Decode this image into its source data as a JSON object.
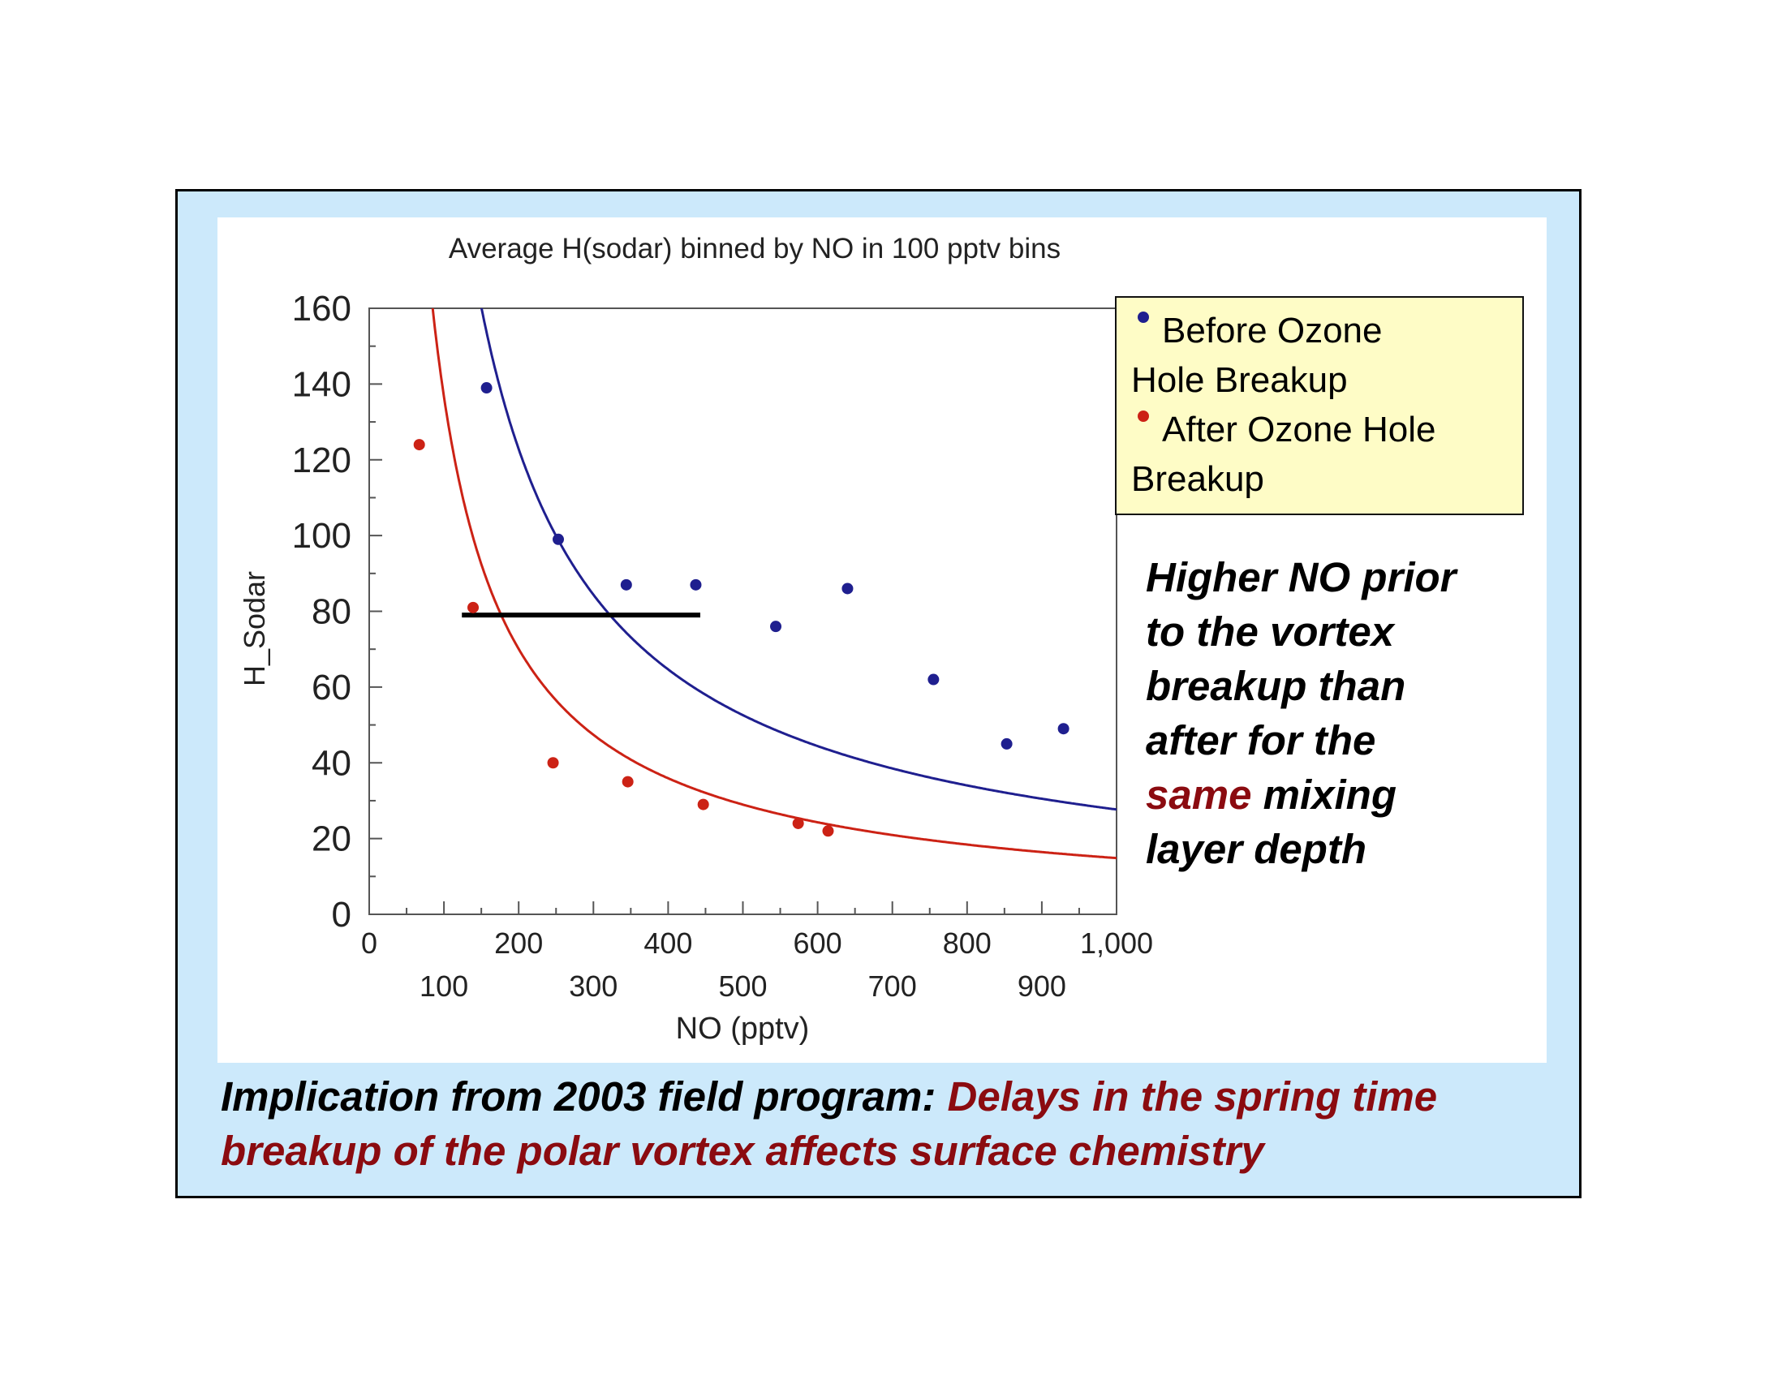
{
  "colors": {
    "frame_fill": "#cce9fb",
    "legend_fill": "#fefcc6",
    "before_series": "#1f1f8f",
    "after_series": "#cc2215",
    "emphasis_text": "#8b0b10"
  },
  "side_note": {
    "line1": "Higher NO prior",
    "line2": "to the vortex",
    "line3": "breakup than",
    "line4": "after for the",
    "emph": "same",
    "line5_rest": " mixing",
    "line6": "layer depth"
  },
  "implication": {
    "lead": "Implication from 2003 field program: ",
    "highlight": "Delays in the spring time breakup of the polar vortex affects surface chemistry"
  },
  "chart_data": {
    "type": "scatter",
    "title": "Average H(sodar) binned by NO in 100 pptv bins",
    "xlabel": "NO (pptv)",
    "ylabel": "H_Sodar",
    "xlim": [
      0,
      1000
    ],
    "ylim": [
      0,
      160
    ],
    "x_ticks": [
      0,
      100,
      200,
      300,
      400,
      500,
      600,
      700,
      800,
      900,
      1000
    ],
    "x_tick_labels": [
      "0",
      "100",
      "200",
      "300",
      "400",
      "500",
      "600",
      "700",
      "800",
      "900",
      "1,000"
    ],
    "y_ticks": [
      0,
      20,
      40,
      60,
      80,
      100,
      120,
      140,
      160
    ],
    "y_tick_labels": [
      "0",
      "20",
      "40",
      "60",
      "80",
      "100",
      "120",
      "140",
      "160"
    ],
    "grid": false,
    "legend_position": "top-right",
    "legend": {
      "before_line1": "Before Ozone",
      "before_line2": "Hole Breakup",
      "after_line1": "After Ozone Hole",
      "after_line2": "Breakup"
    },
    "series": [
      {
        "name": "Before Ozone Hole Breakup",
        "color": "#1f1f8f",
        "points": [
          [
            157,
            139
          ],
          [
            253,
            99
          ],
          [
            344,
            87
          ],
          [
            437,
            87
          ],
          [
            544,
            76
          ],
          [
            640,
            86
          ],
          [
            755,
            62
          ],
          [
            853,
            45
          ],
          [
            929,
            49
          ]
        ],
        "fit": {
          "kind": "power",
          "a": 16600,
          "b": -0.926
        }
      },
      {
        "name": "After Ozone Hole Breakup",
        "color": "#cc2215",
        "points": [
          [
            67,
            124
          ],
          [
            139,
            81
          ],
          [
            246,
            40
          ],
          [
            346,
            35
          ],
          [
            447,
            29
          ],
          [
            574,
            24
          ],
          [
            614,
            22
          ]
        ],
        "fit": {
          "kind": "power",
          "a": 11580,
          "b": -0.964
        }
      }
    ],
    "annotation": {
      "type": "segment",
      "y": 79,
      "x_from": 124,
      "x_to": 443,
      "color": "#000000"
    }
  }
}
